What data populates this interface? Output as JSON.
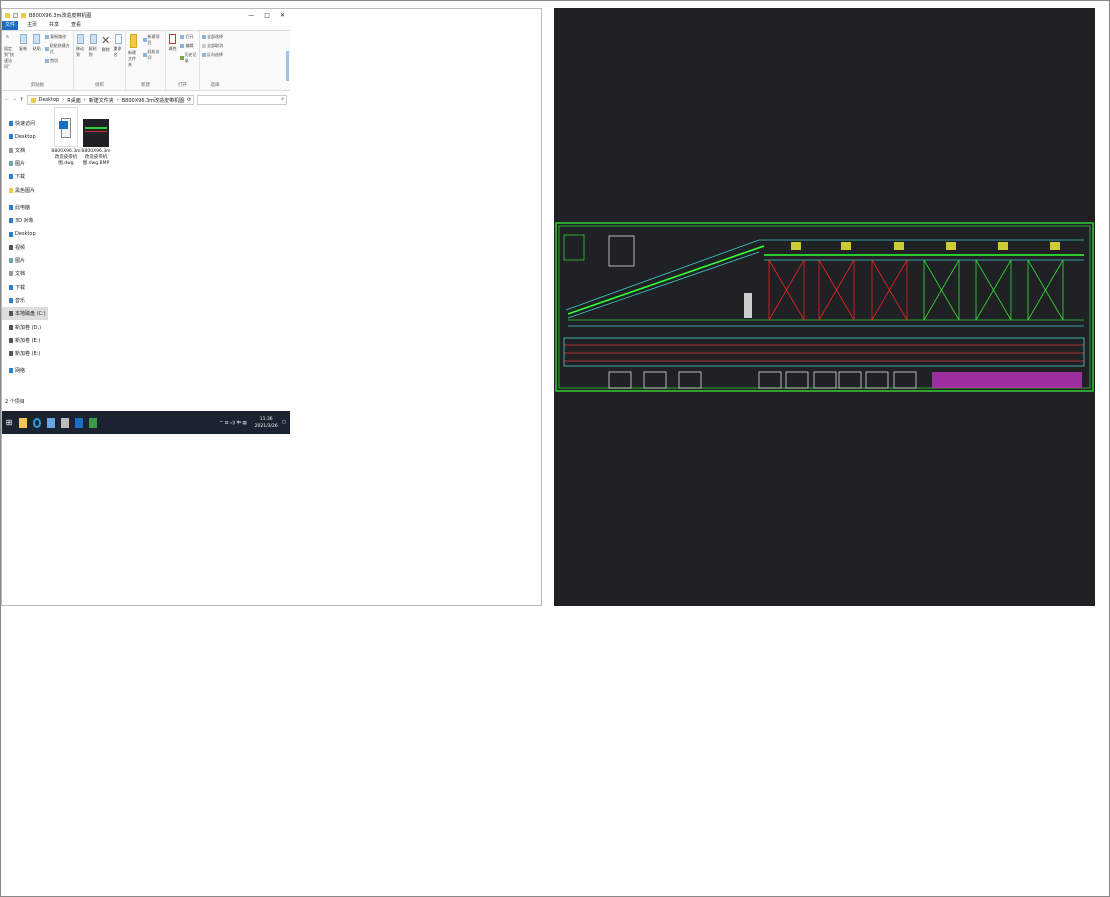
{
  "explorer": {
    "title": "B800X96.3m改造皮带机图",
    "window_buttons": [
      "—",
      "□",
      "✕"
    ],
    "tabs": [
      "文件",
      "主页",
      "共享",
      "查看"
    ],
    "ribbon": {
      "clipboard": {
        "label": "剪贴板",
        "pin": "固定到\"快速访问\"",
        "copy": "复制",
        "paste": "粘贴",
        "copy_path": "复制路径",
        "paste_shortcut": "粘贴快捷方式",
        "cut": "剪切"
      },
      "organize": {
        "label": "组织",
        "move_to": "移动到",
        "copy_to": "复制到",
        "delete": "删除",
        "rename": "重命名"
      },
      "new": {
        "label": "新建",
        "new_folder": "新建文件夹",
        "new_item": "新建项目",
        "easy_access": "轻松访问"
      },
      "open": {
        "label": "打开",
        "properties": "属性",
        "open": "打开",
        "edit": "编辑",
        "history": "历史记录"
      },
      "select": {
        "label": "选择",
        "select_all": "全部选择",
        "select_none": "全部取消",
        "invert": "反向选择"
      }
    },
    "address": [
      "Desktop",
      "R桌面",
      "新建文件夹",
      "B800X96.3m改造皮带机图"
    ],
    "search_icon": "search-icon",
    "nav": [
      {
        "label": "快速访问",
        "color": "#2d7dd2"
      },
      {
        "label": "Desktop",
        "color": "#2d7dd2"
      },
      {
        "label": "文档",
        "color": "#999"
      },
      {
        "label": "图片",
        "color": "#6aa"
      },
      {
        "label": "下载",
        "color": "#2d7dd2"
      },
      {
        "label": "黑色图片",
        "color": "#f2c94c"
      },
      {
        "label": "此电脑",
        "color": "#2d7dd2"
      },
      {
        "label": "3D 对象",
        "color": "#2d7dd2"
      },
      {
        "label": "Desktop",
        "color": "#2d7dd2"
      },
      {
        "label": "视频",
        "color": "#555"
      },
      {
        "label": "图片",
        "color": "#6aa"
      },
      {
        "label": "文档",
        "color": "#999"
      },
      {
        "label": "下载",
        "color": "#2d7dd2"
      },
      {
        "label": "音乐",
        "color": "#2d7dd2"
      },
      {
        "label": "本地磁盘 (C:)",
        "color": "#555",
        "selected": true
      },
      {
        "label": "新加卷 (D:)",
        "color": "#555"
      },
      {
        "label": "新加卷 (E:)",
        "color": "#555"
      },
      {
        "label": "新加卷 (E:)",
        "color": "#555"
      },
      {
        "label": "网络",
        "color": "#2d7dd2"
      }
    ],
    "files": [
      {
        "name": "B800X96.3m改造皮带机图.dwg",
        "type": "dwg"
      },
      {
        "name": "B800X96.3m改造皮带机图.dwg.BMP",
        "type": "bmp"
      }
    ],
    "status": "2 个项目",
    "taskbar": {
      "time": "11:36",
      "date": "2021/3/26",
      "tray": "^ ⊡ ◁) 中 ▤"
    }
  }
}
